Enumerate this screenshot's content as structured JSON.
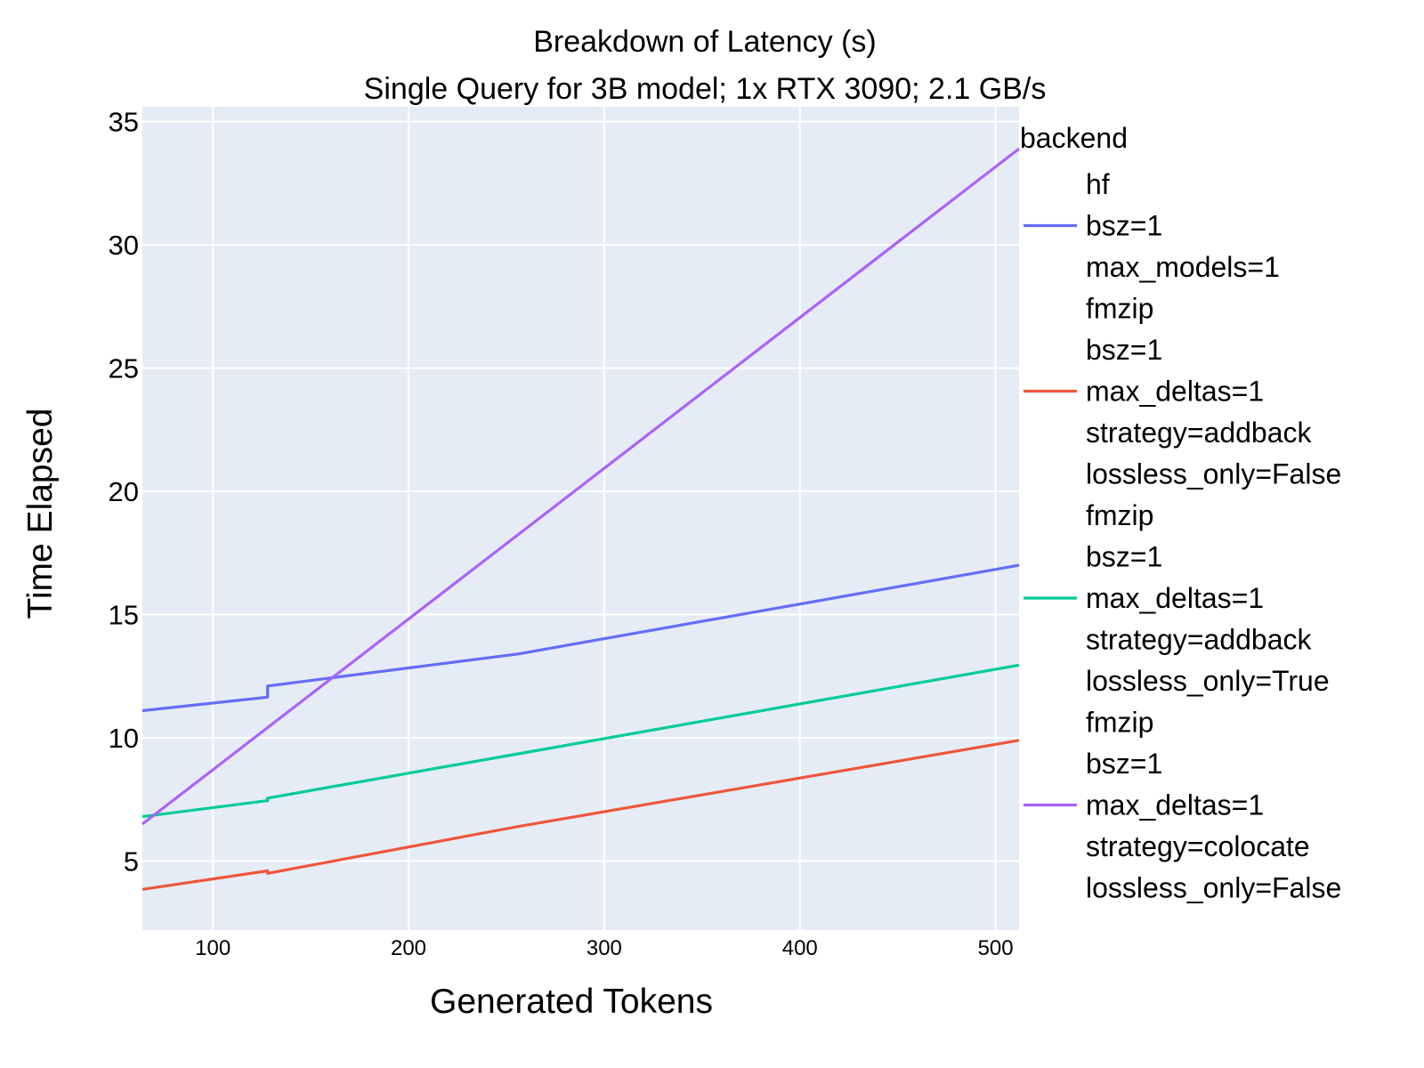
{
  "chart_data": {
    "type": "line",
    "title": "Breakdown of Latency (s)",
    "subtitle": "Single Query for 3B model; 1x RTX 3090; 2.1 GB/s",
    "xlabel": "Generated Tokens",
    "ylabel": "Time Elapsed",
    "xlim": [
      64,
      512
    ],
    "ylim": [
      2.2,
      35.6
    ],
    "xticks": [
      100,
      200,
      300,
      400,
      500
    ],
    "yticks": [
      5,
      10,
      15,
      20,
      25,
      30,
      35
    ],
    "grid": true,
    "legend_title": "backend",
    "legend_position": "right",
    "series": [
      {
        "name_lines": [
          "hf",
          "bsz=1",
          "max_models=1"
        ],
        "color": "#636efa",
        "x": [
          64,
          128,
          128,
          256,
          512
        ],
        "y": [
          11.1,
          11.65,
          12.1,
          13.4,
          17.0
        ]
      },
      {
        "name_lines": [
          "fmzip",
          "bsz=1",
          "max_deltas=1",
          "strategy=addback",
          "lossless_only=False"
        ],
        "color": "#ef553b",
        "x": [
          64,
          128,
          128,
          256,
          512
        ],
        "y": [
          3.85,
          4.6,
          4.5,
          6.4,
          9.9
        ]
      },
      {
        "name_lines": [
          "fmzip",
          "bsz=1",
          "max_deltas=1",
          "strategy=addback",
          "lossless_only=True"
        ],
        "color": "#00cc96",
        "x": [
          64,
          128,
          128,
          256,
          512
        ],
        "y": [
          6.8,
          7.45,
          7.55,
          9.35,
          12.95
        ]
      },
      {
        "name_lines": [
          "fmzip",
          "bsz=1",
          "max_deltas=1",
          "strategy=colocate",
          "lossless_only=False"
        ],
        "color": "#ab63fa",
        "x": [
          64,
          512
        ],
        "y": [
          6.5,
          33.9
        ]
      }
    ]
  }
}
